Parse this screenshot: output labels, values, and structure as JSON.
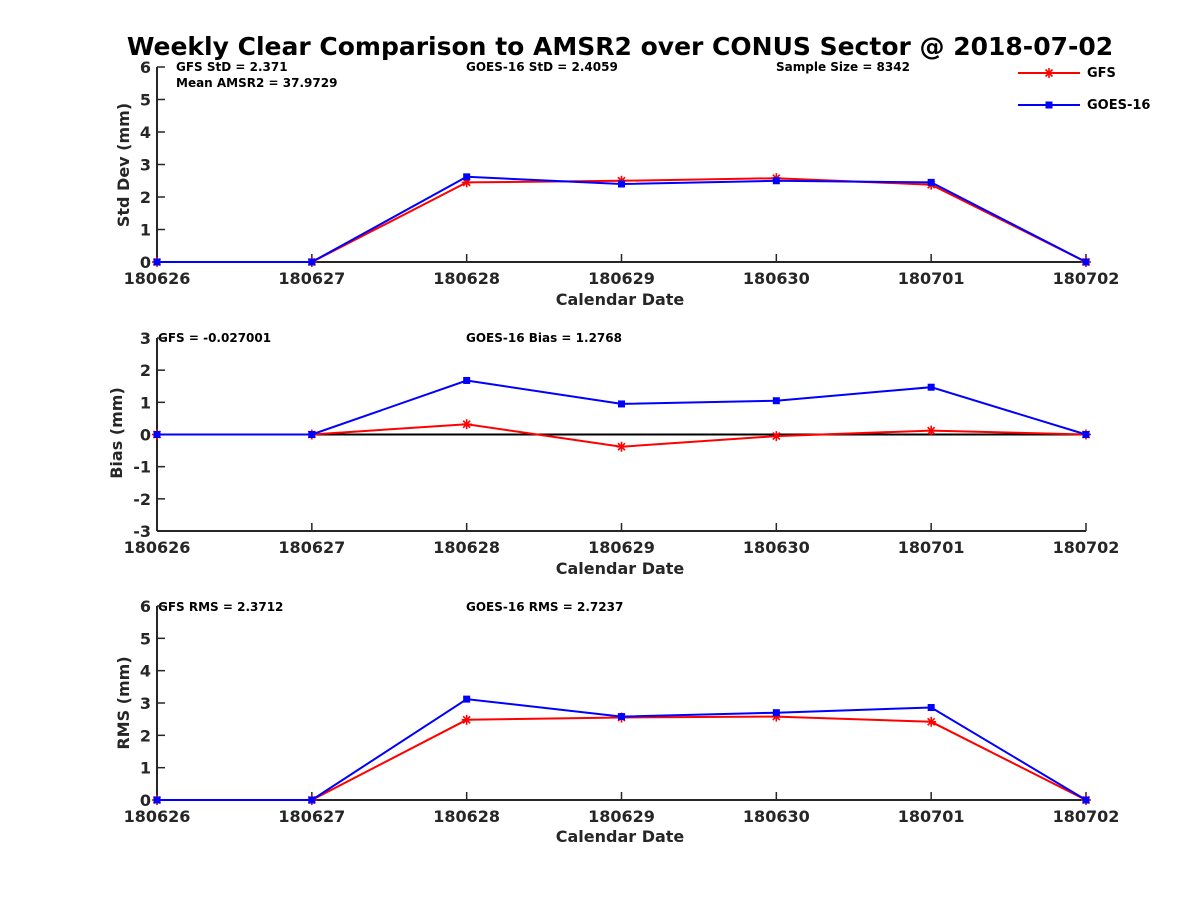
{
  "title": "Weekly Clear Comparison to AMSR2 over CONUS Sector @ 2018-07-02",
  "legend": {
    "placement": "top-right",
    "entries": [
      {
        "name": "GFS",
        "color": "#ff0000",
        "marker": "asterisk"
      },
      {
        "name": "GOES-16",
        "color": "#0000ff",
        "marker": "square"
      }
    ]
  },
  "chart_data": [
    {
      "type": "line",
      "xlabel": "Calendar Date",
      "ylabel": "Std Dev (mm)",
      "categories": [
        "180626",
        "180627",
        "180628",
        "180629",
        "180630",
        "180701",
        "180702"
      ],
      "ylim": [
        0,
        6
      ],
      "yticks": [
        "0",
        "1",
        "2",
        "3",
        "4",
        "5",
        "6"
      ],
      "series": [
        {
          "name": "GFS",
          "color": "#ff0000",
          "marker": "asterisk",
          "values": [
            0,
            0,
            2.45,
            2.5,
            2.58,
            2.38,
            0
          ]
        },
        {
          "name": "GOES-16",
          "color": "#0000ff",
          "marker": "square",
          "values": [
            0,
            0,
            2.62,
            2.4,
            2.5,
            2.45,
            0
          ]
        }
      ],
      "annotations": [
        "GFS StD = 2.371",
        "Mean AMSR2 = 37.9729",
        "GOES-16 StD = 2.4059",
        "Sample Size = 8342"
      ]
    },
    {
      "type": "line",
      "xlabel": "Calendar Date",
      "ylabel": "Bias (mm)",
      "categories": [
        "180626",
        "180627",
        "180628",
        "180629",
        "180630",
        "180701",
        "180702"
      ],
      "ylim": [
        -3,
        3
      ],
      "yticks": [
        "-3",
        "-2",
        "-1",
        "0",
        "1",
        "2",
        "3"
      ],
      "zero_line": true,
      "series": [
        {
          "name": "GFS",
          "color": "#ff0000",
          "marker": "asterisk",
          "values": [
            0,
            0,
            0.32,
            -0.38,
            -0.05,
            0.12,
            0
          ]
        },
        {
          "name": "GOES-16",
          "color": "#0000ff",
          "marker": "square",
          "values": [
            0,
            0,
            1.68,
            0.95,
            1.05,
            1.47,
            0
          ]
        }
      ],
      "annotations": [
        "GFS = -0.027001",
        "GOES-16 Bias  = 1.2768"
      ]
    },
    {
      "type": "line",
      "xlabel": "Calendar Date",
      "ylabel": "RMS (mm)",
      "categories": [
        "180626",
        "180627",
        "180628",
        "180629",
        "180630",
        "180701",
        "180702"
      ],
      "ylim": [
        0,
        6
      ],
      "yticks": [
        "0",
        "1",
        "2",
        "3",
        "4",
        "5",
        "6"
      ],
      "series": [
        {
          "name": "GFS",
          "color": "#ff0000",
          "marker": "asterisk",
          "values": [
            0,
            0,
            2.48,
            2.55,
            2.58,
            2.42,
            0
          ]
        },
        {
          "name": "GOES-16",
          "color": "#0000ff",
          "marker": "square",
          "values": [
            0,
            0,
            3.12,
            2.58,
            2.7,
            2.86,
            0
          ]
        }
      ],
      "annotations": [
        "GFS RMS = 2.3712",
        "GOES-16 RMS = 2.7237"
      ]
    }
  ]
}
